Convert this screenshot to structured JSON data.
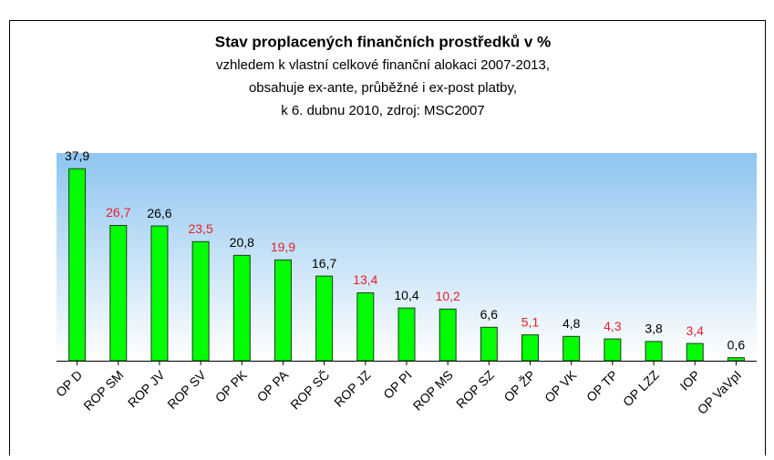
{
  "chart_data": {
    "type": "bar",
    "title": "Stav proplacených finančních prostředků v %",
    "subtitle": [
      "vzhledem k vlastní celkové finanční alokaci 2007-2013,",
      "obsahuje ex-ante, průběžné i ex-post platby,",
      "k 6. dubnu 2010, zdroj: MSC2007"
    ],
    "categories": [
      "OP D",
      "ROP SM",
      "ROP JV",
      "ROP SV",
      "OP PK",
      "OP PA",
      "ROP SČ",
      "ROP JZ",
      "OP PI",
      "ROP MS",
      "ROP SZ",
      "OP ŽP",
      "OP VK",
      "OP TP",
      "OP LZZ",
      "IOP",
      "OP VaVpI"
    ],
    "values": [
      37.9,
      26.7,
      26.6,
      23.5,
      20.8,
      19.9,
      16.7,
      13.4,
      10.4,
      10.2,
      6.6,
      5.1,
      4.8,
      4.3,
      3.8,
      3.4,
      0.6
    ],
    "value_labels": [
      "37,9",
      "26,7",
      "26,6",
      "23,5",
      "20,8",
      "19,9",
      "16,7",
      "13,4",
      "10,4",
      "10,2",
      "6,6",
      "5,1",
      "4,8",
      "4,3",
      "3,8",
      "3,4",
      "0,6"
    ],
    "value_label_colors": [
      "#000000",
      "#e8202a",
      "#000000",
      "#e8202a",
      "#000000",
      "#e8202a",
      "#000000",
      "#e8202a",
      "#000000",
      "#e8202a",
      "#000000",
      "#e8202a",
      "#000000",
      "#e8202a",
      "#000000",
      "#e8202a",
      "#000000"
    ],
    "color": "#00ff00",
    "ylim": [
      0,
      41
    ]
  }
}
